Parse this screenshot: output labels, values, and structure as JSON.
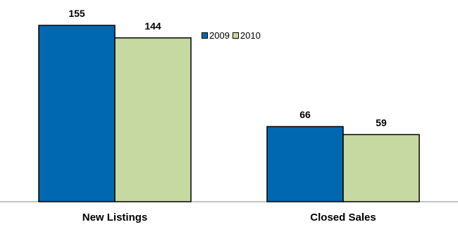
{
  "chart_data": {
    "type": "bar",
    "categories": [
      "New Listings",
      "Closed Sales"
    ],
    "series": [
      {
        "name": "2009",
        "values": [
          155,
          66
        ],
        "color": "#0067b1"
      },
      {
        "name": "2010",
        "values": [
          144,
          59
        ],
        "color": "#c6d9a0"
      }
    ],
    "title": "",
    "xlabel": "",
    "ylabel": "",
    "ylim": [
      0,
      160
    ],
    "grid": false,
    "legend": "top-center",
    "data_labels": true
  }
}
